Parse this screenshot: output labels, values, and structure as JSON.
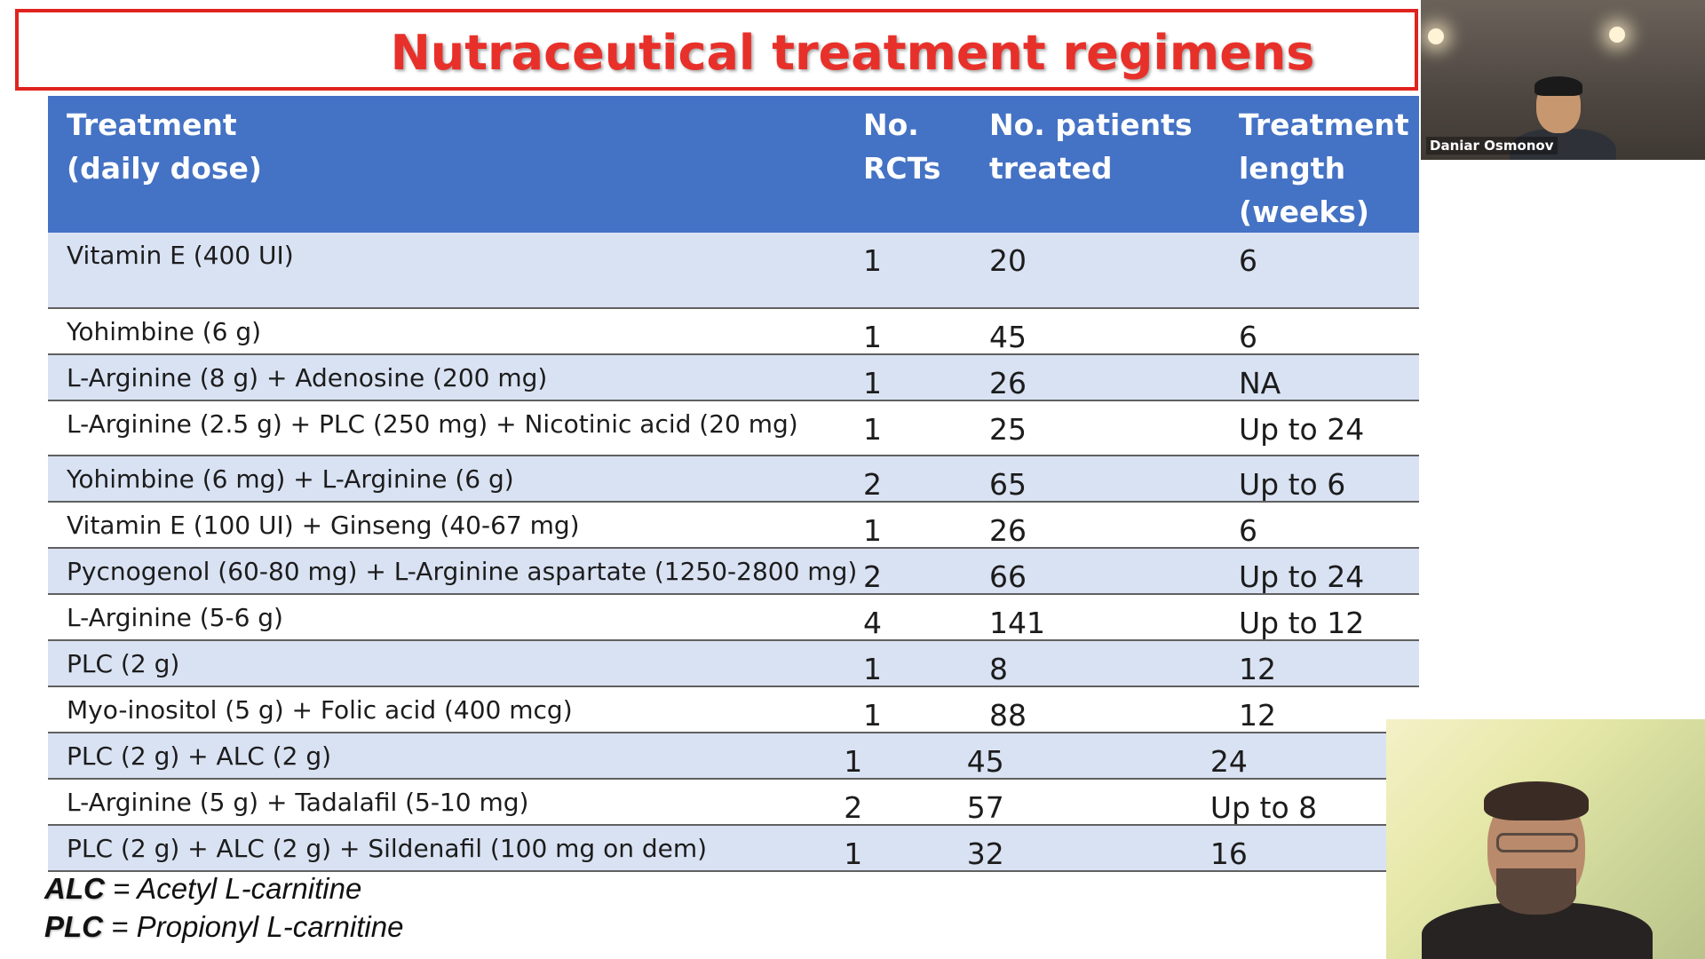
{
  "slide": {
    "title": "Nutraceutical treatment regimens",
    "columns": [
      "Treatment\n(daily dose)",
      "No.\nRCTs",
      "No. patients\ntreated",
      "Treatment\nlength\n(weeks)"
    ],
    "rows": [
      {
        "treatment": "Vitamin E (400 UI)",
        "rcts": "1",
        "patients": "20",
        "length": "6"
      },
      {
        "treatment": "Yohimbine (6 g)",
        "rcts": "1",
        "patients": "45",
        "length": "6"
      },
      {
        "treatment": "L-Arginine (8 g) + Adenosine (200 mg)",
        "rcts": "1",
        "patients": "26",
        "length": "NA"
      },
      {
        "treatment": "L-Arginine (2.5 g) + PLC (250 mg) + Nicotinic acid (20 mg)",
        "rcts": "1",
        "patients": "25",
        "length": "Up to 24"
      },
      {
        "treatment": "Yohimbine (6 mg) + L-Arginine (6 g)",
        "rcts": "2",
        "patients": "65",
        "length": "Up to 6"
      },
      {
        "treatment": "Vitamin E (100 UI) + Ginseng (40-67 mg)",
        "rcts": "1",
        "patients": "26",
        "length": "6"
      },
      {
        "treatment": "Pycnogenol (60-80 mg) + L-Arginine aspartate (1250-2800 mg)",
        "rcts": "2",
        "patients": "66",
        "length": "Up to 24"
      },
      {
        "treatment": "L-Arginine (5-6 g)",
        "rcts": "4",
        "patients": "141",
        "length": "Up to 12"
      },
      {
        "treatment": "PLC (2 g)",
        "rcts": "1",
        "patients": "8",
        "length": "12"
      },
      {
        "treatment": "Myo-inositol (5 g) + Folic acid (400 mcg)",
        "rcts": "1",
        "patients": "88",
        "length": "12"
      },
      {
        "treatment": "PLC (2 g) + ALC (2 g)",
        "rcts": "1",
        "patients": "45",
        "length": "24"
      },
      {
        "treatment": "L-Arginine (5 g) + Tadalafil (5-10 mg)",
        "rcts": "2",
        "patients": "57",
        "length": "Up to 8"
      },
      {
        "treatment": "PLC (2 g) + ALC (2 g) + Sildenafil (100 mg on dem)",
        "rcts": "1",
        "patients": "32",
        "length": "16"
      }
    ],
    "footnotes": [
      {
        "abbr": "ALC",
        "text": " = Acetyl L-carnitine"
      },
      {
        "abbr": "PLC",
        "text": " = Propionyl L-carnitine"
      }
    ]
  },
  "participants": {
    "top": {
      "name": "Daniar Osmonov"
    }
  },
  "colors": {
    "title_red": "#e8302a",
    "header_blue": "#4472c4",
    "row_alt": "#d9e2f3"
  }
}
